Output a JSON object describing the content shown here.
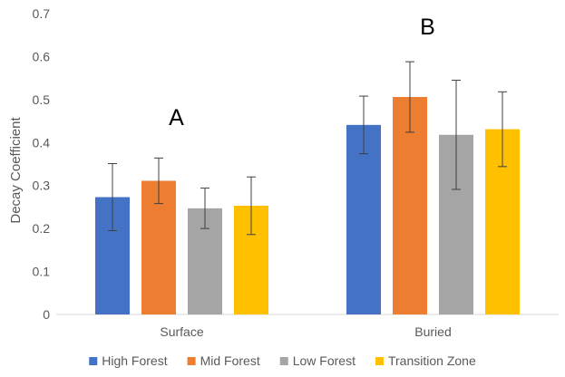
{
  "chart_data": {
    "type": "bar",
    "ylabel": "Decay Coefficient",
    "xlabel": "",
    "ylim": [
      0,
      0.7
    ],
    "yticks": [
      0,
      0.1,
      0.2,
      0.3,
      0.4,
      0.5,
      0.6,
      0.7
    ],
    "ytick_labels": [
      "0",
      "0.1",
      "0.2",
      "0.3",
      "0.4",
      "0.5",
      "0.6",
      "0.7"
    ],
    "grid": false,
    "legend_position": "bottom",
    "categories": [
      "Surface",
      "Buried"
    ],
    "series": [
      {
        "name": "High Forest",
        "color": "#4472C4",
        "values": [
          0.273,
          0.441
        ],
        "error": [
          0.078,
          0.067
        ]
      },
      {
        "name": "Mid Forest",
        "color": "#ED7D31",
        "values": [
          0.311,
          0.506
        ],
        "error": [
          0.053,
          0.082
        ]
      },
      {
        "name": "Low Forest",
        "color": "#A5A5A5",
        "values": [
          0.247,
          0.418
        ],
        "error": [
          0.047,
          0.127
        ]
      },
      {
        "name": "Transition Zone",
        "color": "#FFC000",
        "values": [
          0.253,
          0.431
        ],
        "error": [
          0.067,
          0.087
        ]
      }
    ],
    "annotations": [
      {
        "text": "A",
        "category_index": 0,
        "y": 0.46
      },
      {
        "text": "B",
        "category_index": 1,
        "y": 0.67
      }
    ]
  }
}
